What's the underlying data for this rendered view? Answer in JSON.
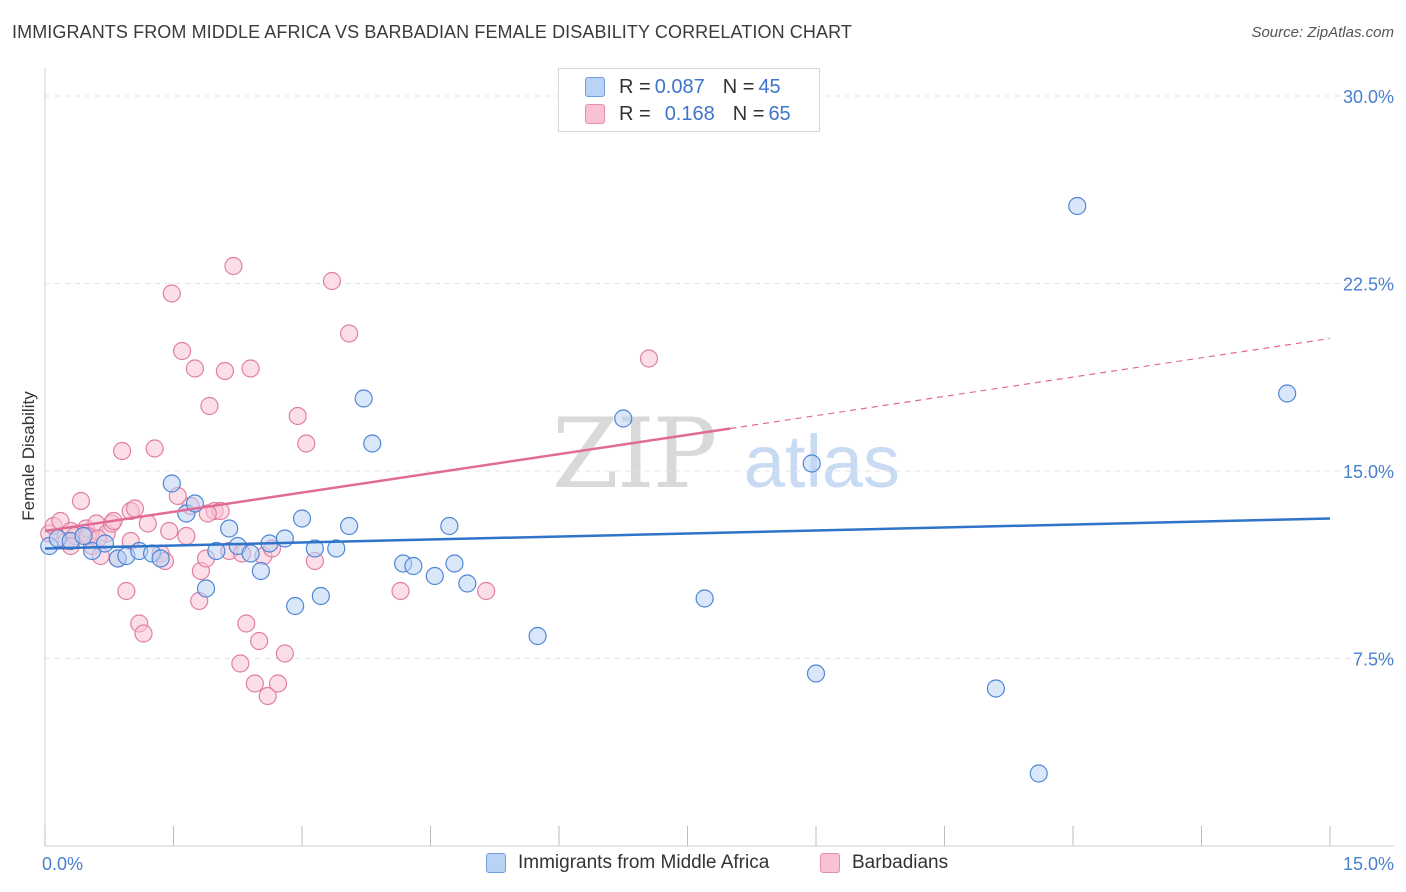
{
  "title": "IMMIGRANTS FROM MIDDLE AFRICA VS BARBADIAN FEMALE DISABILITY CORRELATION CHART",
  "source": "Source: ZipAtlas.com",
  "watermark": {
    "zip": "ZIP",
    "atlas": "atlas"
  },
  "legend": {
    "series1": {
      "r_label": "R = ",
      "r_value": "0.087",
      "n_label": "N = ",
      "n_value": "45"
    },
    "series2": {
      "r_label": "R = ",
      "r_value": "0.168",
      "n_label": "N = ",
      "n_value": "65"
    }
  },
  "bottom_legend": {
    "series1": "Immigrants from Middle Africa",
    "series2": "Barbadians"
  },
  "colors": {
    "blue_fill": "#b9d3f4",
    "blue_stroke": "#4f86d6",
    "blue_line": "#2f74c9",
    "pink_fill": "#f8c2d3",
    "pink_stroke": "#e07fa2",
    "pink_line": "#e06b97"
  },
  "chart_data": {
    "type": "scatter",
    "title": "IMMIGRANTS FROM MIDDLE AFRICA VS BARBADIAN FEMALE DISABILITY CORRELATION CHART",
    "xlabel": "",
    "ylabel": "Female Disability",
    "xlim": [
      0,
      15
    ],
    "ylim": [
      0,
      30
    ],
    "x_tick_labels": [
      "0.0%",
      "15.0%"
    ],
    "y_ticks": [
      7.5,
      15,
      22.5,
      30
    ],
    "y_tick_labels": [
      "7.5%",
      "15.0%",
      "22.5%",
      "30.0%"
    ],
    "series": [
      {
        "name": "Immigrants from Middle Africa",
        "R": 0.087,
        "N": 45,
        "trend": {
          "x": [
            0,
            15
          ],
          "y": [
            11.9,
            13.1
          ]
        },
        "points": [
          [
            0.05,
            12.0
          ],
          [
            0.15,
            12.3
          ],
          [
            0.3,
            12.2
          ],
          [
            0.45,
            12.4
          ],
          [
            0.55,
            11.8
          ],
          [
            0.7,
            12.1
          ],
          [
            0.85,
            11.5
          ],
          [
            0.95,
            11.6
          ],
          [
            1.1,
            11.8
          ],
          [
            1.25,
            11.7
          ],
          [
            1.35,
            11.5
          ],
          [
            1.48,
            14.5
          ],
          [
            1.65,
            13.3
          ],
          [
            1.75,
            13.7
          ],
          [
            1.88,
            10.3
          ],
          [
            2.0,
            11.8
          ],
          [
            2.15,
            12.7
          ],
          [
            2.25,
            12.0
          ],
          [
            2.4,
            11.7
          ],
          [
            2.52,
            11.0
          ],
          [
            2.62,
            12.1
          ],
          [
            2.8,
            12.3
          ],
          [
            2.92,
            9.6
          ],
          [
            3.0,
            13.1
          ],
          [
            3.15,
            11.9
          ],
          [
            3.22,
            10.0
          ],
          [
            3.4,
            11.9
          ],
          [
            3.55,
            12.8
          ],
          [
            3.72,
            17.9
          ],
          [
            3.82,
            16.1
          ],
          [
            4.18,
            11.3
          ],
          [
            4.3,
            11.2
          ],
          [
            4.55,
            10.8
          ],
          [
            4.72,
            12.8
          ],
          [
            4.78,
            11.3
          ],
          [
            4.93,
            10.5
          ],
          [
            5.75,
            8.4
          ],
          [
            6.75,
            17.1
          ],
          [
            7.7,
            9.9
          ],
          [
            8.95,
            15.3
          ],
          [
            9.0,
            6.9
          ],
          [
            11.1,
            6.3
          ],
          [
            11.6,
            2.9
          ],
          [
            12.05,
            25.6
          ],
          [
            14.5,
            18.1
          ]
        ]
      },
      {
        "name": "Barbadians",
        "R": 0.168,
        "N": 65,
        "trend": {
          "x": [
            0,
            8.0
          ],
          "y": [
            12.6,
            16.7
          ]
        },
        "trend_dashed": {
          "x": [
            8.0,
            15
          ],
          "y": [
            16.7,
            20.3
          ]
        },
        "points": [
          [
            0.05,
            12.5
          ],
          [
            0.1,
            12.8
          ],
          [
            0.18,
            13.0
          ],
          [
            0.25,
            12.2
          ],
          [
            0.3,
            12.6
          ],
          [
            0.35,
            12.4
          ],
          [
            0.42,
            13.8
          ],
          [
            0.48,
            12.7
          ],
          [
            0.55,
            12.0
          ],
          [
            0.6,
            12.9
          ],
          [
            0.65,
            11.6
          ],
          [
            0.72,
            12.5
          ],
          [
            0.78,
            12.9
          ],
          [
            0.8,
            13.0
          ],
          [
            0.85,
            11.5
          ],
          [
            0.9,
            15.8
          ],
          [
            0.95,
            10.2
          ],
          [
            1.0,
            13.4
          ],
          [
            1.05,
            13.5
          ],
          [
            1.1,
            8.9
          ],
          [
            1.15,
            8.5
          ],
          [
            1.2,
            12.9
          ],
          [
            1.28,
            15.9
          ],
          [
            1.35,
            11.7
          ],
          [
            1.4,
            11.4
          ],
          [
            1.45,
            12.6
          ],
          [
            1.48,
            22.1
          ],
          [
            1.55,
            14.0
          ],
          [
            1.6,
            19.8
          ],
          [
            1.65,
            12.4
          ],
          [
            1.7,
            13.6
          ],
          [
            1.75,
            19.1
          ],
          [
            1.8,
            9.8
          ],
          [
            1.82,
            11.0
          ],
          [
            1.88,
            11.5
          ],
          [
            1.92,
            17.6
          ],
          [
            1.98,
            13.4
          ],
          [
            2.05,
            13.4
          ],
          [
            2.1,
            19.0
          ],
          [
            2.15,
            11.8
          ],
          [
            2.2,
            23.2
          ],
          [
            2.28,
            7.3
          ],
          [
            2.3,
            11.7
          ],
          [
            2.35,
            8.9
          ],
          [
            2.4,
            19.1
          ],
          [
            2.45,
            6.5
          ],
          [
            2.5,
            8.2
          ],
          [
            2.55,
            11.6
          ],
          [
            2.6,
            6.0
          ],
          [
            2.65,
            11.9
          ],
          [
            2.72,
            6.5
          ],
          [
            2.8,
            7.7
          ],
          [
            2.95,
            17.2
          ],
          [
            3.05,
            16.1
          ],
          [
            3.15,
            11.4
          ],
          [
            3.35,
            22.6
          ],
          [
            3.55,
            20.5
          ],
          [
            4.15,
            10.2
          ],
          [
            5.15,
            10.2
          ],
          [
            7.05,
            19.5
          ],
          [
            0.5,
            12.4
          ],
          [
            0.62,
            12.3
          ],
          [
            0.3,
            12.0
          ],
          [
            1.0,
            12.2
          ],
          [
            1.9,
            13.3
          ]
        ]
      }
    ]
  }
}
